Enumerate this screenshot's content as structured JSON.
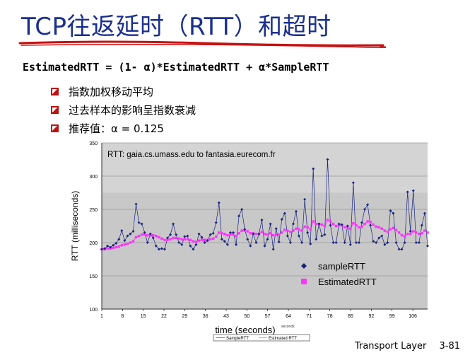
{
  "title": "TCP往返延时（RTT）和超时",
  "formula": "EstimatedRTT = (1- α)*EstimatedRTT + α*SampleRTT",
  "bullets": [
    "指数加权移动平均",
    "过去样本的影响呈指数衰减",
    "推荐值：α = 0.125"
  ],
  "footer": {
    "section": "Transport Layer",
    "page": "3-81"
  },
  "colors": {
    "title": "#1a2f8e",
    "sample": "#1a237e",
    "estimated": "#ff33ff",
    "plot_bg": "#c8c8c8",
    "underline": "#c81010"
  },
  "chart_data": {
    "type": "line",
    "annotation": "RTT: gaia.cs.umass.edu to fantasia.eurecom.fr",
    "xlabel": "time (seconds)",
    "ylabel": "RTT (milliseconds)",
    "xlim": [
      1,
      111
    ],
    "ylim": [
      100,
      350
    ],
    "yticks": [
      100,
      150,
      200,
      250,
      300,
      350
    ],
    "xticks": [
      1,
      8,
      15,
      22,
      29,
      36,
      43,
      50,
      57,
      64,
      71,
      78,
      85,
      92,
      99,
      106
    ],
    "grid": true,
    "legend_position": "bottom-right",
    "series": [
      {
        "name": "sampleRTT",
        "values": [
          190,
          191,
          195,
          193,
          196,
          199,
          205,
          218,
          203,
          210,
          213,
          217,
          258,
          230,
          228,
          215,
          200,
          213,
          207,
          195,
          190,
          191,
          190,
          207,
          212,
          228,
          212,
          200,
          197,
          209,
          210,
          195,
          190,
          197,
          213,
          208,
          200,
          203,
          212,
          214,
          230,
          260,
          205,
          202,
          197,
          215,
          215,
          197,
          240,
          250,
          220,
          205,
          195,
          213,
          200,
          213,
          234,
          195,
          205,
          228,
          190,
          221,
          201,
          235,
          244,
          210,
          200,
          228,
          247,
          210,
          200,
          265,
          215,
          198,
          311,
          205,
          228,
          210,
          212,
          325,
          226,
          200,
          200,
          228,
          227,
          200,
          225,
          197,
          290,
          200,
          200,
          230,
          250,
          257,
          226,
          202,
          200,
          207,
          210,
          197,
          200,
          248,
          244,
          200,
          190,
          190,
          200,
          276,
          217,
          278,
          200,
          200,
          226,
          244,
          195
        ]
      },
      {
        "name": "EstimatedRTT",
        "values": [
          190,
          190,
          191,
          191,
          192,
          193,
          194,
          196,
          197,
          198,
          200,
          202,
          208,
          210,
          212,
          212,
          211,
          211,
          211,
          210,
          208,
          206,
          204,
          204,
          205,
          207,
          207,
          206,
          205,
          205,
          205,
          204,
          202,
          201,
          203,
          204,
          204,
          204,
          205,
          206,
          209,
          215,
          214,
          213,
          211,
          212,
          212,
          210,
          214,
          218,
          218,
          217,
          214,
          214,
          213,
          213,
          216,
          213,
          212,
          214,
          211,
          212,
          212,
          215,
          219,
          218,
          216,
          218,
          221,
          220,
          218,
          224,
          223,
          220,
          232,
          228,
          228,
          227,
          225,
          234,
          232,
          228,
          225,
          226,
          226,
          223,
          223,
          221,
          229,
          226,
          223,
          224,
          228,
          232,
          231,
          227,
          224,
          223,
          221,
          218,
          216,
          220,
          222,
          219,
          215,
          211,
          209,
          213,
          213,
          217,
          215,
          213,
          214,
          218,
          215
        ]
      }
    ],
    "legend_items": [
      "sampleRTT",
      "EstimatedRTT"
    ],
    "inner_legend": [
      "SampleRTT",
      "Estimated RTT"
    ],
    "inner_xlabel_fragment": "seconds"
  }
}
